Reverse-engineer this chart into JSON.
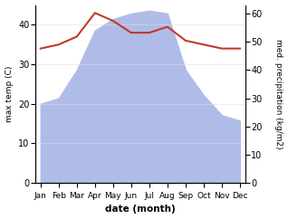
{
  "months": [
    "Jan",
    "Feb",
    "Mar",
    "Apr",
    "May",
    "Jun",
    "Jul",
    "Aug",
    "Sep",
    "Oct",
    "Nov",
    "Dec"
  ],
  "temperature": [
    34,
    35,
    37,
    43,
    41,
    38,
    38,
    39.5,
    36,
    35,
    34,
    34
  ],
  "precipitation": [
    28,
    30,
    40,
    54,
    58,
    60,
    61,
    60,
    40,
    31,
    24,
    22
  ],
  "temp_color": "#c0392b",
  "precip_color_fill": "#b0bce8",
  "precip_color_line": "#7080c0",
  "temp_ylim": [
    0,
    45
  ],
  "precip_ylim": [
    0,
    63
  ],
  "temp_yticks": [
    0,
    10,
    20,
    30,
    40
  ],
  "precip_yticks": [
    0,
    10,
    20,
    30,
    40,
    50,
    60
  ],
  "xlabel": "date (month)",
  "ylabel_left": "max temp (C)",
  "ylabel_right": "med. precipitation (kg/m2)",
  "figsize": [
    3.18,
    2.42
  ],
  "dpi": 100
}
